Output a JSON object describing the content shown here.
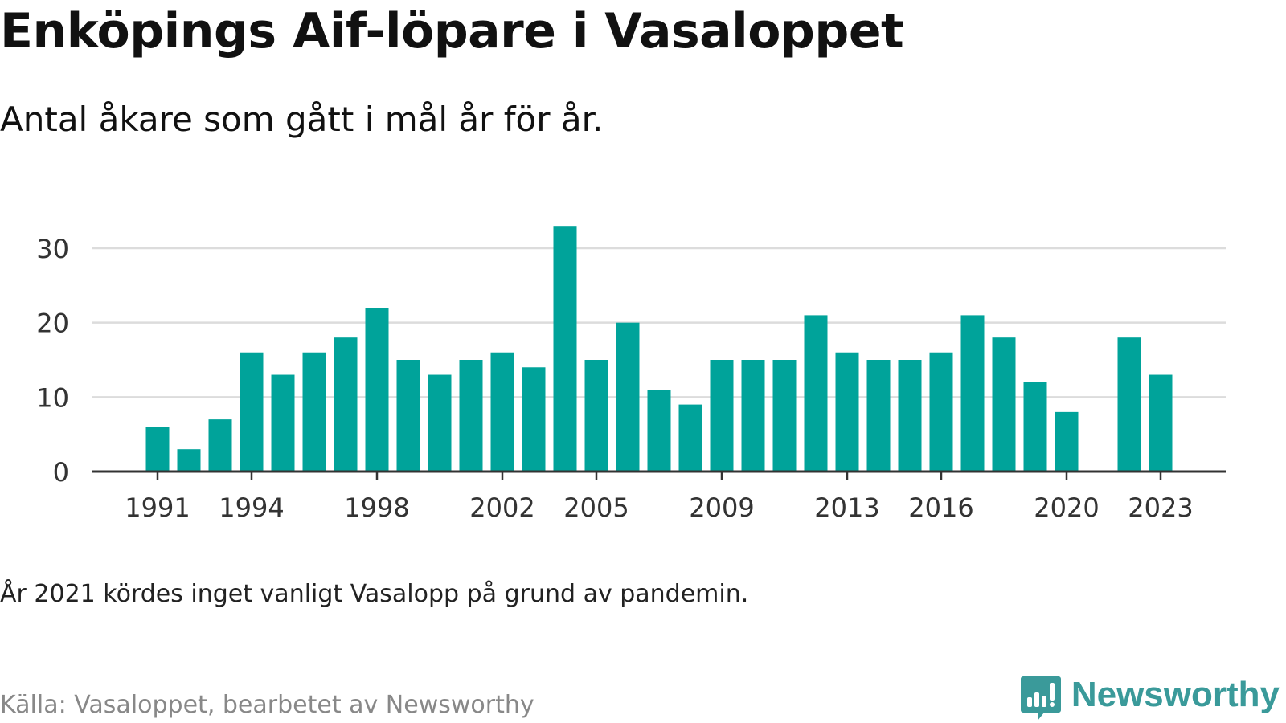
{
  "title": "Enköpings Aif-löpare i Vasaloppet",
  "subtitle": "Antal åkare som gått i mål år för år.",
  "note": "År 2021 kördes inget vanligt Vasalopp på grund av pandemin.",
  "source": "Källa: Vasaloppet, bearbetet av Newsworthy",
  "brand": {
    "name": "Newsworthy",
    "icon": "newsworthy-logo-icon",
    "color": "#3a9a9a"
  },
  "chart_data": {
    "type": "bar",
    "title": "",
    "xlabel": "",
    "ylabel": "",
    "categories": [
      1991,
      1992,
      1993,
      1994,
      1995,
      1996,
      1997,
      1998,
      1999,
      2000,
      2001,
      2002,
      2003,
      2004,
      2005,
      2006,
      2007,
      2008,
      2009,
      2010,
      2011,
      2012,
      2013,
      2014,
      2015,
      2016,
      2017,
      2018,
      2019,
      2020,
      2021,
      2022,
      2023
    ],
    "values": [
      6,
      3,
      7,
      16,
      13,
      16,
      18,
      22,
      15,
      13,
      15,
      16,
      14,
      33,
      15,
      20,
      11,
      9,
      15,
      15,
      15,
      21,
      16,
      15,
      15,
      16,
      21,
      18,
      12,
      8,
      null,
      18,
      13
    ],
    "x_tick_labels": [
      "1991",
      "1994",
      "1998",
      "2002",
      "2005",
      "2009",
      "2013",
      "2016",
      "2020",
      "2023"
    ],
    "y_ticks": [
      0,
      10,
      20,
      30
    ],
    "ylim": [
      0,
      35
    ],
    "bar_color": "#00a39a",
    "grid": true,
    "legend": "none"
  }
}
